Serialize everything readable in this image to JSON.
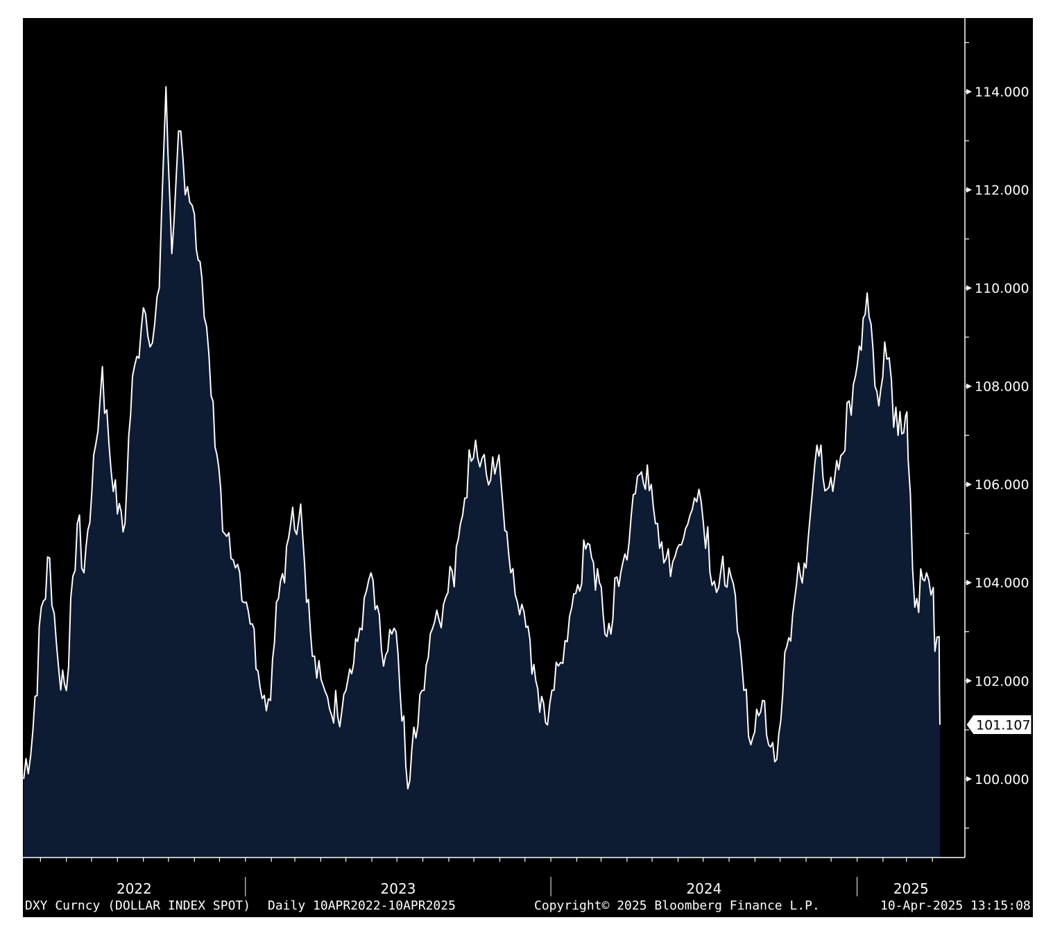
{
  "chart_data": {
    "type": "area",
    "title": "",
    "xlabel": "",
    "ylabel": "",
    "x_tick_labels": [
      "2022",
      "2023",
      "2024",
      "2025"
    ],
    "y_ticks": [
      "114.000",
      "112.000",
      "110.000",
      "108.000",
      "106.000",
      "104.000",
      "102.000",
      "100.000"
    ],
    "ylim": [
      98.4,
      115.5
    ],
    "xlim": [
      "2022-04-10",
      "2025-04-10"
    ],
    "last_value_label": "101.107",
    "grid": false,
    "series": [
      {
        "values_y": [
          [
            "2022-04-11",
            100.0
          ],
          [
            "2022-04-22",
            101.0
          ],
          [
            "2022-05-02",
            103.5
          ],
          [
            "2022-05-12",
            104.5
          ],
          [
            "2022-05-23",
            102.2
          ],
          [
            "2022-06-01",
            101.8
          ],
          [
            "2022-06-14",
            105.2
          ],
          [
            "2022-06-22",
            104.2
          ],
          [
            "2022-07-06",
            106.8
          ],
          [
            "2022-07-14",
            108.4
          ],
          [
            "2022-07-22",
            106.8
          ],
          [
            "2022-08-01",
            105.4
          ],
          [
            "2022-08-10",
            105.2
          ],
          [
            "2022-08-19",
            108.2
          ],
          [
            "2022-09-01",
            109.6
          ],
          [
            "2022-09-09",
            108.8
          ],
          [
            "2022-09-20",
            110.0
          ],
          [
            "2022-09-28",
            114.1
          ],
          [
            "2022-10-05",
            110.7
          ],
          [
            "2022-10-13",
            113.2
          ],
          [
            "2022-10-21",
            111.9
          ],
          [
            "2022-11-01",
            111.5
          ],
          [
            "2022-11-10",
            110.2
          ],
          [
            "2022-11-21",
            107.8
          ],
          [
            "2022-11-28",
            106.6
          ],
          [
            "2022-12-07",
            105.0
          ],
          [
            "2022-12-20",
            104.3
          ],
          [
            "2023-01-02",
            103.6
          ],
          [
            "2023-01-16",
            102.2
          ],
          [
            "2023-01-31",
            101.6
          ],
          [
            "2023-02-07",
            103.6
          ],
          [
            "2023-02-24",
            105.2
          ],
          [
            "2023-03-08",
            105.6
          ],
          [
            "2023-03-22",
            102.5
          ],
          [
            "2023-04-04",
            101.9
          ],
          [
            "2023-04-14",
            101.3
          ],
          [
            "2023-05-01",
            101.8
          ],
          [
            "2023-05-15",
            102.8
          ],
          [
            "2023-05-31",
            104.2
          ],
          [
            "2023-06-15",
            102.3
          ],
          [
            "2023-06-30",
            103.0
          ],
          [
            "2023-07-14",
            99.8
          ],
          [
            "2023-07-31",
            101.8
          ],
          [
            "2023-08-15",
            103.2
          ],
          [
            "2023-08-31",
            103.8
          ],
          [
            "2023-09-15",
            105.2
          ],
          [
            "2023-10-03",
            106.9
          ],
          [
            "2023-10-16",
            106.2
          ],
          [
            "2023-10-31",
            106.6
          ],
          [
            "2023-11-14",
            104.2
          ],
          [
            "2023-11-30",
            103.4
          ],
          [
            "2023-12-14",
            102.0
          ],
          [
            "2023-12-28",
            101.1
          ],
          [
            "2024-01-10",
            102.3
          ],
          [
            "2024-01-26",
            103.5
          ],
          [
            "2024-02-14",
            104.8
          ],
          [
            "2024-02-28",
            104.0
          ],
          [
            "2024-03-08",
            102.9
          ],
          [
            "2024-03-27",
            104.4
          ],
          [
            "2024-04-16",
            106.2
          ],
          [
            "2024-04-30",
            106.0
          ],
          [
            "2024-05-15",
            104.4
          ],
          [
            "2024-05-31",
            104.7
          ],
          [
            "2024-06-10",
            105.1
          ],
          [
            "2024-06-26",
            105.9
          ],
          [
            "2024-07-17",
            103.8
          ],
          [
            "2024-08-01",
            104.3
          ],
          [
            "2024-08-16",
            102.4
          ],
          [
            "2024-08-27",
            100.7
          ],
          [
            "2024-09-10",
            101.6
          ],
          [
            "2024-09-27",
            100.4
          ],
          [
            "2024-10-09",
            102.7
          ],
          [
            "2024-10-23",
            104.4
          ],
          [
            "2024-11-01",
            104.3
          ],
          [
            "2024-11-14",
            106.8
          ],
          [
            "2024-11-26",
            105.9
          ],
          [
            "2024-12-10",
            106.3
          ],
          [
            "2024-12-30",
            108.2
          ],
          [
            "2025-01-13",
            109.9
          ],
          [
            "2025-01-27",
            107.6
          ],
          [
            "2025-02-03",
            108.9
          ],
          [
            "2025-02-19",
            107.0
          ],
          [
            "2025-02-28",
            107.4
          ],
          [
            "2025-03-03",
            106.5
          ],
          [
            "2025-03-11",
            103.5
          ],
          [
            "2025-03-25",
            104.2
          ],
          [
            "2025-04-02",
            103.9
          ],
          [
            "2025-04-04",
            102.6
          ],
          [
            "2025-04-09",
            102.9
          ],
          [
            "2025-04-10",
            101.107
          ]
        ]
      }
    ]
  },
  "footer": {
    "security": "DXY Curncy (DOLLAR INDEX SPOT)",
    "range": "Daily 10APR2022-10APR2025",
    "copyright": "Copyright© 2025 Bloomberg Finance L.P.",
    "timestamp": "10-Apr-2025 13:15:08"
  },
  "colors": {
    "background": "#000000",
    "area_fill": "#0d1b33",
    "line": "#ffffff",
    "axis": "#ffffff",
    "page": "#ffffff"
  }
}
